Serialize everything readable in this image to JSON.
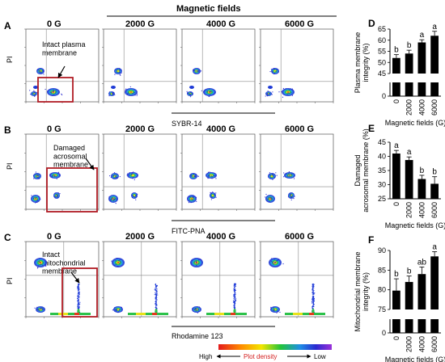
{
  "header": {
    "title": "Magnetic fields"
  },
  "flow_rows": [
    {
      "letter": "A",
      "y_label": "PI",
      "x_label": "SYBR-14",
      "columns": [
        "0 G",
        "2000 G",
        "4000 G",
        "6000 G"
      ],
      "annotation": "Intact plasma\nmembrane"
    },
    {
      "letter": "B",
      "y_label": "PI",
      "x_label": "FITC-PNA",
      "columns": [
        "0 G",
        "2000 G",
        "4000 G",
        "6000 G"
      ],
      "annotation": "Damaged\nacrosomal\nmembrane"
    },
    {
      "letter": "C",
      "y_label": "PI",
      "x_label": "Rhodamine 123",
      "columns": [
        "0 G",
        "2000 G",
        "4000 G",
        "6000 G"
      ],
      "annotation": "Intact\nmitochondrial\nmembrane"
    }
  ],
  "density_legend": {
    "high": "High",
    "label": "Plot density",
    "low": "Low"
  },
  "colors": {
    "highlight_box": "#b01c24",
    "bar": "#000000",
    "density_label": "#d42020"
  },
  "chart_data": [
    {
      "type": "bar",
      "letter": "D",
      "categories": [
        "0",
        "2000",
        "4000",
        "6000"
      ],
      "values": [
        52,
        54,
        59,
        62
      ],
      "errors": [
        1.5,
        1.5,
        1.2,
        2
      ],
      "sig_letters": [
        "b",
        "b",
        "a",
        "a"
      ],
      "ylabel": "Plasma membrane\nintegrity (%)",
      "xlabel": "Magnetic fields (G)",
      "ylim": [
        45,
        65
      ],
      "yticks": [
        "45",
        "50",
        "55",
        "60",
        "65"
      ],
      "break_label": "0"
    },
    {
      "type": "bar",
      "letter": "E",
      "categories": [
        "0",
        "2000",
        "4000",
        "6000"
      ],
      "values": [
        41,
        38.7,
        32,
        30.3
      ],
      "errors": [
        1.1,
        1.1,
        1.3,
        2.5
      ],
      "sig_letters": [
        "a",
        "a",
        "b",
        "b"
      ],
      "ylabel": "Damaged\nacrosomal membrane (%)",
      "xlabel": "Magnetic fields (G)",
      "ylim": [
        25,
        45
      ],
      "yticks": [
        "25",
        "30",
        "35",
        "40",
        "45"
      ]
    },
    {
      "type": "bar",
      "letter": "F",
      "categories": [
        "0",
        "2000",
        "4000",
        "6000"
      ],
      "values": [
        79.8,
        82,
        84,
        88.5
      ],
      "errors": [
        3,
        1.5,
        1.8,
        1.2
      ],
      "sig_letters": [
        "b",
        "b",
        "ab",
        "a"
      ],
      "ylabel": "Mitochondrial membrane\nintegrity (%)",
      "xlabel": "Magnetic fields (G)",
      "ylim": [
        75,
        90
      ],
      "yticks": [
        "75",
        "80",
        "85",
        "90"
      ],
      "break_label": "0"
    }
  ]
}
